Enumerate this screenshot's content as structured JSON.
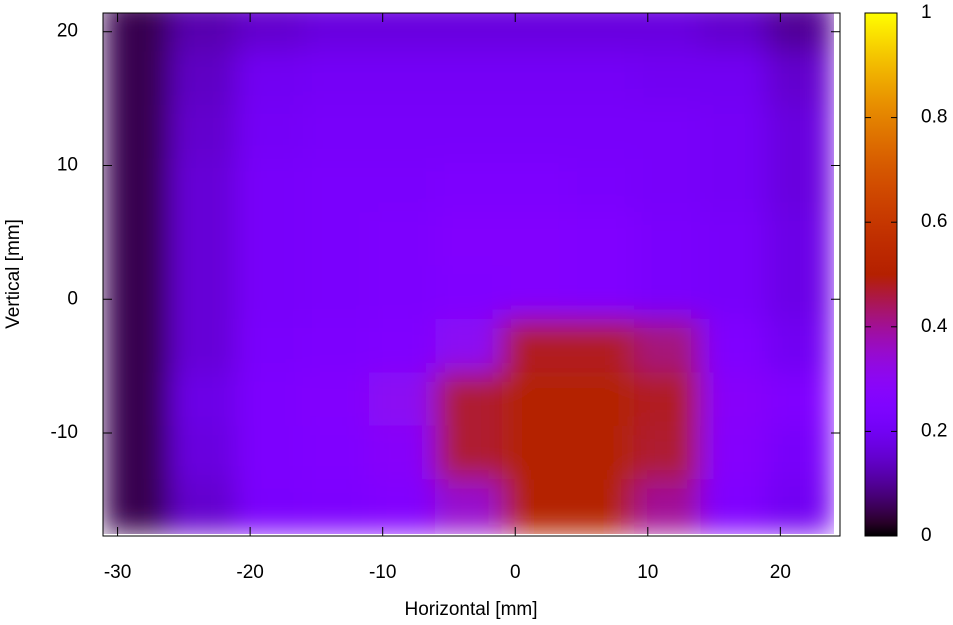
{
  "chart_data": {
    "type": "heatmap",
    "xlabel": "Horizontal [mm]",
    "ylabel": "Vertical [mm]",
    "palette": "gnuplot",
    "x": [
      -28.5,
      -23.5,
      -18.5,
      -13.5,
      -8.5,
      -3.5,
      1.5,
      6.5,
      11.5,
      16.5,
      21.5
    ],
    "y": [
      20.5,
      16.5,
      12.5,
      8.5,
      4.5,
      0.5,
      -3.5,
      -7.5,
      -11.5,
      -15.5
    ],
    "z": [
      [
        0.05,
        0.12,
        0.15,
        0.17,
        0.17,
        0.17,
        0.17,
        0.17,
        0.17,
        0.15,
        0.1
      ],
      [
        0.05,
        0.14,
        0.2,
        0.21,
        0.21,
        0.21,
        0.21,
        0.21,
        0.2,
        0.2,
        0.15
      ],
      [
        0.05,
        0.15,
        0.21,
        0.22,
        0.22,
        0.22,
        0.22,
        0.22,
        0.22,
        0.21,
        0.17
      ],
      [
        0.05,
        0.16,
        0.22,
        0.23,
        0.23,
        0.24,
        0.24,
        0.23,
        0.22,
        0.21,
        0.17
      ],
      [
        0.05,
        0.16,
        0.22,
        0.23,
        0.24,
        0.26,
        0.26,
        0.25,
        0.23,
        0.22,
        0.18
      ],
      [
        0.05,
        0.16,
        0.22,
        0.23,
        0.24,
        0.25,
        0.26,
        0.25,
        0.23,
        0.22,
        0.18
      ],
      [
        0.05,
        0.16,
        0.23,
        0.24,
        0.25,
        0.3,
        0.48,
        0.48,
        0.42,
        0.25,
        0.2
      ],
      [
        0.05,
        0.18,
        0.24,
        0.26,
        0.3,
        0.47,
        0.5,
        0.5,
        0.48,
        0.28,
        0.25
      ],
      [
        0.05,
        0.17,
        0.24,
        0.25,
        0.28,
        0.47,
        0.5,
        0.5,
        0.47,
        0.27,
        0.22
      ],
      [
        0.05,
        0.15,
        0.23,
        0.24,
        0.26,
        0.35,
        0.5,
        0.5,
        0.4,
        0.25,
        0.2
      ]
    ],
    "xlim": [
      -31.1,
      24.5
    ],
    "ylim": [
      -17.7,
      21.4
    ],
    "xticks": [
      -30,
      -20,
      -10,
      0,
      10,
      20
    ],
    "yticks": [
      -10,
      0,
      10,
      20
    ],
    "cblim": [
      0,
      1
    ],
    "cbticks": [
      0,
      0.2,
      0.4,
      0.6,
      0.8,
      1
    ]
  }
}
